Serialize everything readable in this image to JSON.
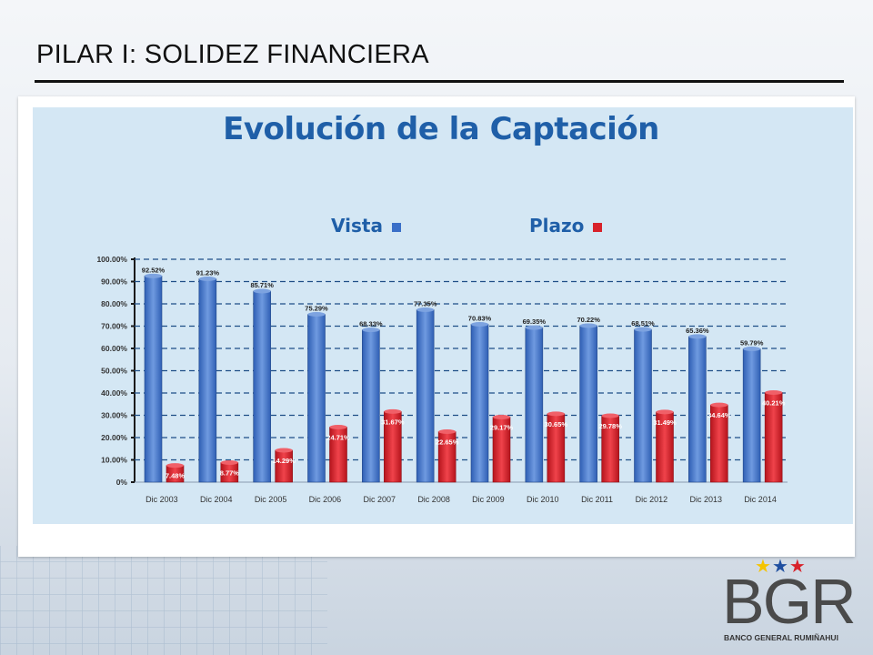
{
  "slide_title": "PILAR I: SOLIDEZ FINANCIERA",
  "logo": {
    "text": "BGR",
    "subtitle": "BANCO GENERAL RUMIÑAHUI",
    "star_colors": [
      "#f5c400",
      "#1f4fa0",
      "#d8222a"
    ]
  },
  "colors": {
    "vista": "#3a6fc8",
    "plazo": "#d8222a",
    "title": "#1f5fa8"
  },
  "chart_data": {
    "type": "bar",
    "title": "Evolución de la Captación",
    "categories": [
      "Dic 2003",
      "Dic 2004",
      "Dic 2005",
      "Dic 2006",
      "Dic 2007",
      "Dic 2008",
      "Dic 2009",
      "Dic 2010",
      "Dic 2011",
      "Dic 2012",
      "Dic 2013",
      "Dic 2014"
    ],
    "series": [
      {
        "name": "Vista",
        "values": [
          92.52,
          91.23,
          85.71,
          75.29,
          68.33,
          77.35,
          70.83,
          69.35,
          70.22,
          68.51,
          65.36,
          59.79
        ],
        "labels": [
          "92.52%",
          "91.23%",
          "85.71%",
          "75.29%",
          "68.33%",
          "77.35%",
          "70.83%",
          "69.35%",
          "70.22%",
          "68.51%",
          "65.36%",
          "59.79%"
        ]
      },
      {
        "name": "Plazo",
        "values": [
          7.48,
          8.77,
          14.29,
          24.71,
          31.67,
          22.65,
          29.17,
          30.65,
          29.78,
          31.49,
          34.64,
          40.21
        ],
        "labels": [
          "7.48%",
          "8.77%",
          "14.29%",
          "24.71%",
          "31.67%",
          "22.65%",
          "29.17%",
          "30.65%",
          "29.78%",
          "31.49%",
          "34.64%",
          "40.21%"
        ]
      }
    ],
    "yticks": [
      "0%",
      "10.00%",
      "20.00%",
      "30.00%",
      "40.00%",
      "50.00%",
      "60.00%",
      "70.00%",
      "80.00%",
      "90.00%",
      "100.00%"
    ],
    "ylim": [
      0,
      100
    ],
    "grid": true,
    "legend": "top-center"
  }
}
